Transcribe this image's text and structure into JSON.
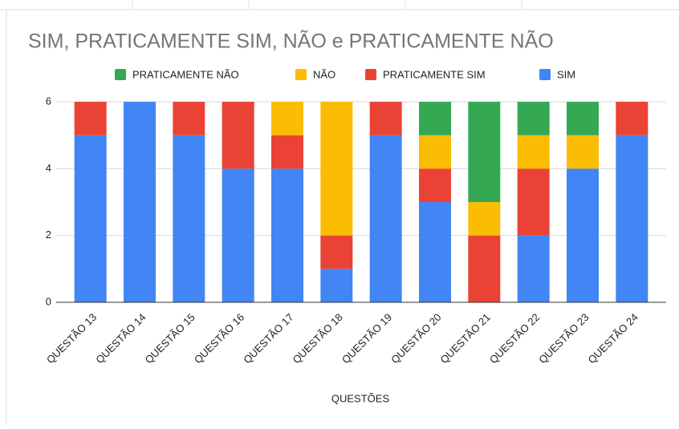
{
  "chart_data": {
    "type": "stacked_bar",
    "title": "SIM, PRATICAMENTE SIM, NÃO  e PRATICAMENTE NÃO",
    "x_label": "QUESTÕES",
    "categories": [
      "QUESTÃO 13",
      "QUESTÃO 14",
      "QUESTÃO 15",
      "QUESTÃO 16",
      "QUESTÃO 17",
      "QUESTÃO 18",
      "QUESTÃO 19",
      "QUESTÃO 20",
      "QUESTÃO 21",
      "QUESTÃO 22",
      "QUESTÃO 23",
      "QUESTÃO 24"
    ],
    "series": [
      {
        "name": "PRATICAMENTE NÃO",
        "color": "#34a853",
        "values": [
          0,
          0,
          0,
          0,
          0,
          0,
          0,
          1,
          3,
          1,
          1,
          0
        ]
      },
      {
        "name": "NÃO",
        "color": "#fbbc04",
        "values": [
          0,
          0,
          0,
          0,
          1,
          4,
          0,
          1,
          1,
          1,
          1,
          0
        ]
      },
      {
        "name": "PRATICAMENTE SIM",
        "color": "#ea4335",
        "values": [
          1,
          0,
          1,
          2,
          1,
          1,
          1,
          1,
          2,
          2,
          0,
          1
        ]
      },
      {
        "name": "SIM",
        "color": "#4285f4",
        "values": [
          5,
          6,
          5,
          4,
          4,
          1,
          5,
          3,
          0,
          2,
          4,
          5
        ]
      }
    ],
    "ylim": [
      0,
      6
    ],
    "yticks": [
      0,
      2,
      4,
      6
    ],
    "grid": true,
    "legend": "top"
  }
}
